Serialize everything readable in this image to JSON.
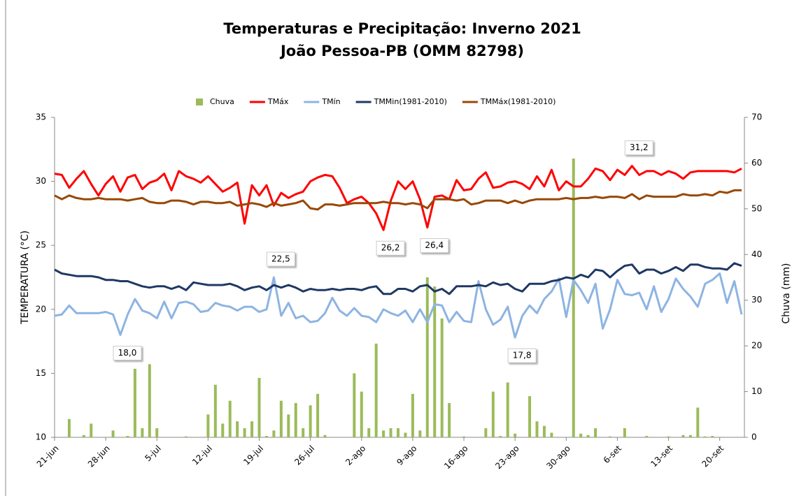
{
  "chart_data": {
    "type": "line",
    "title": "Temperaturas e Precipitação: Inverno 2021",
    "subtitle": "João Pessoa-PB (OMM 82798)",
    "y_label": "TEMPERATURA (°C)",
    "y2_label": "Chuva (mm)",
    "ylim": [
      10,
      35
    ],
    "yticks": [
      10,
      15,
      20,
      25,
      30,
      35
    ],
    "y2lim": [
      0,
      70
    ],
    "y2ticks": [
      0,
      10,
      20,
      30,
      40,
      50,
      60,
      70
    ],
    "legend": "top",
    "categories": [
      "21-jun",
      null,
      null,
      null,
      null,
      null,
      null,
      "28-jun",
      null,
      null,
      null,
      null,
      null,
      null,
      "5-jul",
      null,
      null,
      null,
      null,
      null,
      null,
      "12-jul",
      null,
      null,
      null,
      null,
      null,
      null,
      "19-jul",
      null,
      null,
      null,
      null,
      null,
      null,
      "26-jul",
      null,
      null,
      null,
      null,
      null,
      null,
      "2-ago",
      null,
      null,
      null,
      null,
      null,
      null,
      "9-ago",
      null,
      null,
      null,
      null,
      null,
      null,
      "16-ago",
      null,
      null,
      null,
      null,
      null,
      null,
      "23-ago",
      null,
      null,
      null,
      null,
      null,
      null,
      "30-ago",
      null,
      null,
      null,
      null,
      null,
      null,
      "6-set",
      null,
      null,
      null,
      null,
      null,
      null,
      "13-set",
      null,
      null,
      null,
      null,
      null,
      null,
      "20-set",
      null,
      null,
      null
    ],
    "series": [
      {
        "name": "Chuva",
        "type": "bar",
        "axis": "y2",
        "color": "#9bbb59",
        "values": [
          0,
          0,
          4,
          0,
          0.5,
          3,
          0,
          0,
          1.5,
          0,
          0.3,
          15,
          2,
          16,
          2,
          0,
          0,
          0,
          0.2,
          0,
          0,
          5,
          11.5,
          3,
          8,
          3.5,
          2,
          3.5,
          13,
          0.3,
          1.5,
          8,
          5,
          7.5,
          2,
          7,
          9.5,
          0.5,
          0,
          0,
          0,
          14,
          10,
          2,
          20.5,
          1.5,
          2,
          2,
          1,
          9.5,
          1.5,
          35,
          33,
          26,
          7.5,
          0,
          0.2,
          0,
          0,
          2,
          10,
          0.3,
          12,
          0.8,
          0,
          9,
          3.5,
          2.5,
          1,
          0,
          0,
          61,
          0.8,
          0.5,
          2,
          0,
          0.2,
          0,
          2,
          0,
          0,
          0.3,
          0,
          0,
          0.2,
          0,
          0.5,
          0.5,
          6.5,
          0.2,
          0.3,
          0,
          0,
          0,
          0
        ]
      },
      {
        "name": "TMáx",
        "type": "line",
        "color": "#ff0000",
        "values": [
          30.6,
          30.5,
          29.5,
          30.2,
          30.8,
          29.8,
          28.9,
          29.8,
          30.4,
          29.2,
          30.3,
          30.5,
          29.4,
          29.9,
          30.1,
          30.6,
          29.3,
          30.8,
          30.4,
          30.2,
          29.9,
          30.4,
          29.8,
          29.2,
          29.5,
          29.9,
          26.7,
          29.7,
          28.9,
          29.7,
          28.1,
          29.1,
          28.7,
          29.0,
          29.2,
          30.0,
          30.3,
          30.5,
          30.4,
          29.5,
          28.3,
          28.6,
          28.8,
          28.3,
          27.5,
          26.2,
          28.5,
          30.0,
          29.4,
          30.0,
          28.6,
          26.4,
          28.8,
          28.9,
          28.6,
          30.1,
          29.3,
          29.4,
          30.2,
          30.7,
          29.5,
          29.6,
          29.9,
          30.0,
          29.8,
          29.4,
          30.4,
          29.6,
          30.9,
          29.3,
          30.0,
          29.6,
          29.6,
          30.2,
          31.0,
          30.8,
          30.1,
          30.9,
          30.5,
          31.2,
          30.5,
          30.8,
          30.8,
          30.5,
          30.8,
          30.6,
          30.2,
          30.7,
          30.8,
          30.8,
          30.8,
          30.8,
          30.8,
          30.7,
          31.0
        ],
        "value_labels": [
          null,
          null,
          null,
          null,
          null,
          null,
          null,
          null,
          null,
          null,
          null,
          null,
          null,
          null,
          null,
          null,
          null,
          null,
          null,
          null,
          null,
          null,
          null,
          null,
          null,
          null,
          null,
          null,
          null,
          null,
          null,
          null,
          null,
          null,
          null,
          null,
          null,
          null,
          null,
          null,
          null,
          null,
          null,
          null,
          null,
          "26,2",
          null,
          null,
          null,
          null,
          null,
          "26,4",
          null,
          null,
          null,
          null,
          null,
          null,
          null,
          null,
          null,
          null,
          null,
          null,
          null,
          null,
          null,
          null,
          null,
          null,
          null,
          null,
          null,
          null,
          null,
          null,
          null,
          null,
          null,
          "31,2",
          null,
          null,
          null,
          null,
          null,
          null,
          null,
          null,
          null,
          null,
          null,
          null,
          null,
          null,
          null
        ]
      },
      {
        "name": "TMín",
        "type": "line",
        "color": "#8db4e2",
        "values": [
          19.5,
          19.6,
          20.3,
          19.7,
          19.7,
          19.7,
          19.7,
          19.8,
          19.6,
          18.0,
          19.6,
          20.8,
          19.9,
          19.7,
          19.3,
          20.6,
          19.3,
          20.5,
          20.6,
          20.4,
          19.8,
          19.9,
          20.5,
          20.3,
          20.2,
          19.9,
          20.2,
          20.2,
          19.8,
          20.0,
          22.5,
          19.5,
          20.5,
          19.3,
          19.5,
          19.0,
          19.1,
          19.7,
          20.9,
          19.9,
          19.5,
          20.1,
          19.5,
          19.4,
          19.0,
          20.0,
          19.7,
          19.5,
          19.9,
          19.0,
          20.0,
          19.0,
          20.4,
          20.3,
          19.0,
          19.8,
          19.1,
          19.0,
          22.2,
          20.0,
          18.8,
          19.2,
          20.2,
          17.8,
          19.5,
          20.3,
          19.7,
          20.8,
          21.4,
          22.4,
          19.4,
          22.3,
          21.5,
          20.5,
          22.0,
          18.5,
          20.0,
          22.3,
          21.2,
          21.1,
          21.3,
          20.0,
          21.8,
          19.8,
          20.8,
          22.4,
          21.6,
          21.0,
          20.2,
          22.0,
          22.3,
          22.8,
          20.5,
          22.2,
          19.6
        ],
        "value_labels": [
          null,
          null,
          null,
          null,
          null,
          null,
          null,
          null,
          null,
          "18,0",
          null,
          null,
          null,
          null,
          null,
          null,
          null,
          null,
          null,
          null,
          null,
          null,
          null,
          null,
          null,
          null,
          null,
          null,
          null,
          null,
          "22,5",
          null,
          null,
          null,
          null,
          null,
          null,
          null,
          null,
          null,
          null,
          null,
          null,
          null,
          null,
          null,
          null,
          null,
          null,
          null,
          null,
          null,
          null,
          null,
          null,
          null,
          null,
          null,
          null,
          null,
          null,
          null,
          null,
          "17,8",
          null,
          null,
          null,
          null,
          null,
          null,
          null,
          null,
          null,
          null,
          null,
          null,
          null,
          null,
          null,
          null,
          null,
          null,
          null,
          null,
          null,
          null,
          null,
          null,
          null,
          null,
          null,
          null,
          null,
          null,
          null
        ]
      },
      {
        "name": "TMMin(1981-2010)",
        "type": "line",
        "color": "#1f3864",
        "values": [
          23.1,
          22.8,
          22.7,
          22.6,
          22.6,
          22.6,
          22.5,
          22.3,
          22.3,
          22.2,
          22.2,
          22.0,
          21.8,
          21.7,
          21.8,
          21.8,
          21.6,
          21.8,
          21.5,
          22.1,
          22.0,
          21.9,
          21.9,
          21.9,
          22.0,
          21.8,
          21.5,
          21.7,
          21.8,
          21.5,
          21.9,
          21.7,
          21.9,
          21.7,
          21.4,
          21.6,
          21.5,
          21.5,
          21.6,
          21.5,
          21.6,
          21.6,
          21.5,
          21.7,
          21.8,
          21.2,
          21.2,
          21.6,
          21.6,
          21.4,
          21.8,
          21.9,
          21.4,
          21.6,
          21.2,
          21.8,
          21.8,
          21.8,
          21.9,
          21.8,
          22.1,
          21.9,
          22.0,
          21.6,
          21.4,
          22.0,
          22.0,
          22.0,
          22.2,
          22.3,
          22.5,
          22.4,
          22.7,
          22.5,
          23.1,
          23.0,
          22.5,
          23.0,
          23.4,
          23.5,
          22.8,
          23.1,
          23.1,
          22.8,
          23.0,
          23.3,
          23.0,
          23.5,
          23.5,
          23.3,
          23.2,
          23.2,
          23.1,
          23.6,
          23.4
        ]
      },
      {
        "name": "TMMáx(1981-2010)",
        "type": "line",
        "color": "#984806",
        "values": [
          28.9,
          28.6,
          28.9,
          28.7,
          28.6,
          28.6,
          28.7,
          28.6,
          28.6,
          28.6,
          28.5,
          28.6,
          28.7,
          28.4,
          28.3,
          28.3,
          28.5,
          28.5,
          28.4,
          28.2,
          28.4,
          28.4,
          28.3,
          28.3,
          28.4,
          28.1,
          28.2,
          28.3,
          28.2,
          28.0,
          28.3,
          28.1,
          28.2,
          28.3,
          28.5,
          27.9,
          27.8,
          28.2,
          28.2,
          28.1,
          28.2,
          28.3,
          28.3,
          28.3,
          28.3,
          28.4,
          28.3,
          28.3,
          28.2,
          28.3,
          28.2,
          27.9,
          28.6,
          28.6,
          28.6,
          28.5,
          28.6,
          28.2,
          28.3,
          28.5,
          28.5,
          28.5,
          28.3,
          28.5,
          28.3,
          28.5,
          28.6,
          28.6,
          28.6,
          28.6,
          28.7,
          28.6,
          28.7,
          28.7,
          28.8,
          28.7,
          28.8,
          28.8,
          28.7,
          29.0,
          28.6,
          28.9,
          28.8,
          28.8,
          28.8,
          28.8,
          29.0,
          28.9,
          28.9,
          29.0,
          28.9,
          29.2,
          29.1,
          29.3,
          29.3
        ]
      }
    ]
  }
}
